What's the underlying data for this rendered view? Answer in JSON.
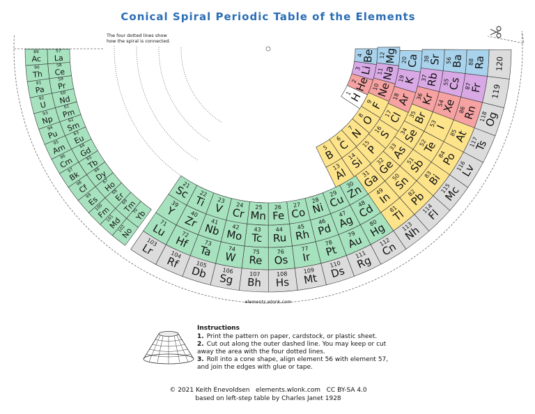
{
  "header": {
    "title": "Conical Spiral Periodic Table of the Elements",
    "note": [
      "The four dotted lines show",
      "how the spiral is connected."
    ]
  },
  "elements": [
    {
      "number": 1,
      "symbol": "H"
    },
    {
      "number": 2,
      "symbol": "He"
    },
    {
      "number": 3,
      "symbol": "Li"
    },
    {
      "number": 4,
      "symbol": "Be"
    },
    {
      "number": 5,
      "symbol": "B"
    },
    {
      "number": 6,
      "symbol": "C"
    },
    {
      "number": 7,
      "symbol": "N"
    },
    {
      "number": 8,
      "symbol": "O"
    },
    {
      "number": 9,
      "symbol": "F"
    },
    {
      "number": 10,
      "symbol": "Ne"
    },
    {
      "number": 11,
      "symbol": "Na"
    },
    {
      "number": 12,
      "symbol": "Mg"
    },
    {
      "number": 13,
      "symbol": "Al"
    },
    {
      "number": 14,
      "symbol": "Si"
    },
    {
      "number": 15,
      "symbol": "P"
    },
    {
      "number": 16,
      "symbol": "S"
    },
    {
      "number": 17,
      "symbol": "Cl"
    },
    {
      "number": 18,
      "symbol": "Ar"
    },
    {
      "number": 19,
      "symbol": "K"
    },
    {
      "number": 20,
      "symbol": "Ca"
    },
    {
      "number": 21,
      "symbol": "Sc"
    },
    {
      "number": 22,
      "symbol": "Ti"
    },
    {
      "number": 23,
      "symbol": "V"
    },
    {
      "number": 24,
      "symbol": "Cr"
    },
    {
      "number": 25,
      "symbol": "Mn"
    },
    {
      "number": 26,
      "symbol": "Fe"
    },
    {
      "number": 27,
      "symbol": "Co"
    },
    {
      "number": 28,
      "symbol": "Ni"
    },
    {
      "number": 29,
      "symbol": "Cu"
    },
    {
      "number": 30,
      "symbol": "Zn"
    },
    {
      "number": 31,
      "symbol": "Ga"
    },
    {
      "number": 32,
      "symbol": "Ge"
    },
    {
      "number": 33,
      "symbol": "As"
    },
    {
      "number": 34,
      "symbol": "Se"
    },
    {
      "number": 35,
      "symbol": "Br"
    },
    {
      "number": 36,
      "symbol": "Kr"
    },
    {
      "number": 37,
      "symbol": "Rb"
    },
    {
      "number": 38,
      "symbol": "Sr"
    },
    {
      "number": 39,
      "symbol": "Y"
    },
    {
      "number": 40,
      "symbol": "Zr"
    },
    {
      "number": 41,
      "symbol": "Nb"
    },
    {
      "number": 42,
      "symbol": "Mo"
    },
    {
      "number": 43,
      "symbol": "Tc"
    },
    {
      "number": 44,
      "symbol": "Ru"
    },
    {
      "number": 45,
      "symbol": "Rh"
    },
    {
      "number": 46,
      "symbol": "Pd"
    },
    {
      "number": 47,
      "symbol": "Ag"
    },
    {
      "number": 48,
      "symbol": "Cd"
    },
    {
      "number": 49,
      "symbol": "In"
    },
    {
      "number": 50,
      "symbol": "Sn"
    },
    {
      "number": 51,
      "symbol": "Sb"
    },
    {
      "number": 52,
      "symbol": "Te"
    },
    {
      "number": 53,
      "symbol": "I"
    },
    {
      "number": 54,
      "symbol": "Xe"
    },
    {
      "number": 55,
      "symbol": "Cs"
    },
    {
      "number": 56,
      "symbol": "Ba"
    },
    {
      "number": 57,
      "symbol": "La"
    },
    {
      "number": 58,
      "symbol": "Ce"
    },
    {
      "number": 59,
      "symbol": "Pr"
    },
    {
      "number": 60,
      "symbol": "Nd"
    },
    {
      "number": 61,
      "symbol": "Pm"
    },
    {
      "number": 62,
      "symbol": "Sm"
    },
    {
      "number": 63,
      "symbol": "Eu"
    },
    {
      "number": 64,
      "symbol": "Gd"
    },
    {
      "number": 65,
      "symbol": "Tb"
    },
    {
      "number": 66,
      "symbol": "Dy"
    },
    {
      "number": 67,
      "symbol": "Ho"
    },
    {
      "number": 68,
      "symbol": "Er"
    },
    {
      "number": 69,
      "symbol": "Tm"
    },
    {
      "number": 70,
      "symbol": "Yb"
    },
    {
      "number": 71,
      "symbol": "Lu"
    },
    {
      "number": 72,
      "symbol": "Hf"
    },
    {
      "number": 73,
      "symbol": "Ta"
    },
    {
      "number": 74,
      "symbol": "W"
    },
    {
      "number": 75,
      "symbol": "Re"
    },
    {
      "number": 76,
      "symbol": "Os"
    },
    {
      "number": 77,
      "symbol": "Ir"
    },
    {
      "number": 78,
      "symbol": "Pt"
    },
    {
      "number": 79,
      "symbol": "Au"
    },
    {
      "number": 80,
      "symbol": "Hg"
    },
    {
      "number": 81,
      "symbol": "Tl"
    },
    {
      "number": 82,
      "symbol": "Pb"
    },
    {
      "number": 83,
      "symbol": "Bi"
    },
    {
      "number": 84,
      "symbol": "Po"
    },
    {
      "number": 85,
      "symbol": "At"
    },
    {
      "number": 86,
      "symbol": "Rn"
    },
    {
      "number": 87,
      "symbol": "Fr"
    },
    {
      "number": 88,
      "symbol": "Ra"
    },
    {
      "number": 89,
      "symbol": "Ac"
    },
    {
      "number": 90,
      "symbol": "Th"
    },
    {
      "number": 91,
      "symbol": "Pa"
    },
    {
      "number": 92,
      "symbol": "U"
    },
    {
      "number": 93,
      "symbol": "Np"
    },
    {
      "number": 94,
      "symbol": "Pu"
    },
    {
      "number": 95,
      "symbol": "Am"
    },
    {
      "number": 96,
      "symbol": "Cm"
    },
    {
      "number": 97,
      "symbol": "Bk"
    },
    {
      "number": 98,
      "symbol": "Cf"
    },
    {
      "number": 99,
      "symbol": "Es"
    },
    {
      "number": 100,
      "symbol": "Fm"
    },
    {
      "number": 101,
      "symbol": "Md"
    },
    {
      "number": 102,
      "symbol": "No"
    },
    {
      "number": 103,
      "symbol": "Lr"
    },
    {
      "number": 104,
      "symbol": "Rf"
    },
    {
      "number": 105,
      "symbol": "Db"
    },
    {
      "number": 106,
      "symbol": "Sg"
    },
    {
      "number": 107,
      "symbol": "Bh"
    },
    {
      "number": 108,
      "symbol": "Hs"
    },
    {
      "number": 109,
      "symbol": "Mt"
    },
    {
      "number": 110,
      "symbol": "Ds"
    },
    {
      "number": 111,
      "symbol": "Rg"
    },
    {
      "number": 112,
      "symbol": "Cn"
    },
    {
      "number": 113,
      "symbol": "Nh"
    },
    {
      "number": 114,
      "symbol": "Fl"
    },
    {
      "number": 115,
      "symbol": "Mc"
    },
    {
      "number": 116,
      "symbol": "Lv"
    },
    {
      "number": 117,
      "symbol": "Ts"
    },
    {
      "number": 118,
      "symbol": "Og"
    },
    {
      "number": 119
    },
    {
      "number": 120
    }
  ],
  "colors": {
    "s1": "#d9a9e6",
    "s2": "#a9d3ec",
    "p": "#fde48b",
    "noble": "#f6a2a2",
    "d": "#a7e2bf",
    "f": "#a7e2bf",
    "heavy": "#dcdcdc",
    "h": "#ffffff"
  },
  "footer_url": "elements.wlonk.com",
  "instructions": {
    "title": "Instructions",
    "steps": [
      {
        "num": "1.",
        "lines": [
          "Print the pattern on paper, cardstock, or plastic sheet."
        ]
      },
      {
        "num": "2.",
        "lines": [
          "Cut out along the outer dashed line. You may keep or cut",
          "away the area with the four dotted lines."
        ]
      },
      {
        "num": "3.",
        "lines": [
          "Roll into a cone shape, align element 56 with element 57,",
          "and join the edges with glue or tape."
        ]
      }
    ]
  },
  "credits": [
    "© 2021 Keith Enevoldsen   elements.wlonk.com   CC BY-SA 4.0",
    "based on left-step table by Charles Janet 1928"
  ]
}
